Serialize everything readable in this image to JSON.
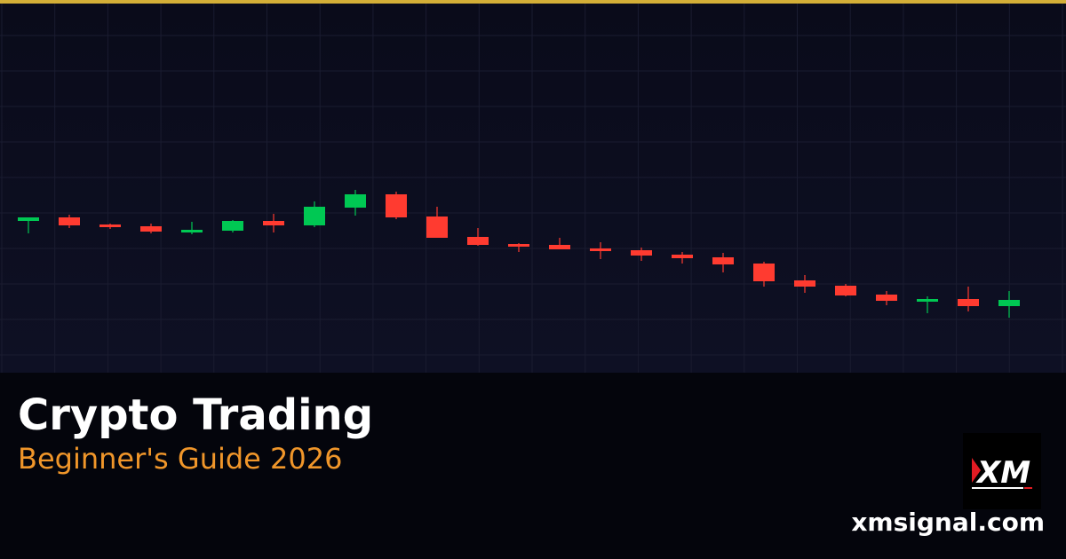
{
  "colors": {
    "accent_bar": "#d4af37",
    "up": "#00c853",
    "down": "#ff3b30",
    "subtitle": "#f0962a",
    "background": "#0b0c1c"
  },
  "title": "Crypto Trading",
  "subtitle": "Beginner's Guide 2026",
  "logo": {
    "text": "XM"
  },
  "site": "xmsignal.com",
  "chart_data": {
    "type": "candlestick",
    "grid": true,
    "axes_labels": false,
    "candles": [
      {
        "o": 171,
        "c": 175,
        "h": 175,
        "l": 157
      },
      {
        "o": 175,
        "c": 166,
        "h": 178,
        "l": 163
      },
      {
        "o": 167,
        "c": 164,
        "h": 168,
        "l": 162
      },
      {
        "o": 165,
        "c": 159,
        "h": 168,
        "l": 157
      },
      {
        "o": 158,
        "c": 161,
        "h": 170,
        "l": 156
      },
      {
        "o": 160,
        "c": 171,
        "h": 172,
        "l": 158
      },
      {
        "o": 171,
        "c": 166,
        "h": 179,
        "l": 158
      },
      {
        "o": 166,
        "c": 187,
        "h": 193,
        "l": 164
      },
      {
        "o": 186,
        "c": 201,
        "h": 206,
        "l": 177
      },
      {
        "o": 201,
        "c": 175,
        "h": 204,
        "l": 173
      },
      {
        "o": 176,
        "c": 152,
        "h": 187,
        "l": 152
      },
      {
        "o": 153,
        "c": 144,
        "h": 163,
        "l": 143
      },
      {
        "o": 145,
        "c": 142,
        "h": 146,
        "l": 136
      },
      {
        "o": 144,
        "c": 139,
        "h": 152,
        "l": 139
      },
      {
        "o": 140,
        "c": 137,
        "h": 147,
        "l": 128
      },
      {
        "o": 138,
        "c": 132,
        "h": 141,
        "l": 126
      },
      {
        "o": 133,
        "c": 129,
        "h": 136,
        "l": 123
      },
      {
        "o": 130,
        "c": 122,
        "h": 135,
        "l": 113
      },
      {
        "o": 123,
        "c": 103,
        "h": 125,
        "l": 97
      },
      {
        "o": 104,
        "c": 97,
        "h": 110,
        "l": 90
      },
      {
        "o": 98,
        "c": 87,
        "h": 100,
        "l": 86
      },
      {
        "o": 88,
        "c": 81,
        "h": 92,
        "l": 76
      },
      {
        "o": 80,
        "c": 83,
        "h": 86,
        "l": 67
      },
      {
        "o": 83,
        "c": 75,
        "h": 97,
        "l": 69
      },
      {
        "o": 75,
        "c": 82,
        "h": 92,
        "l": 62
      }
    ]
  }
}
